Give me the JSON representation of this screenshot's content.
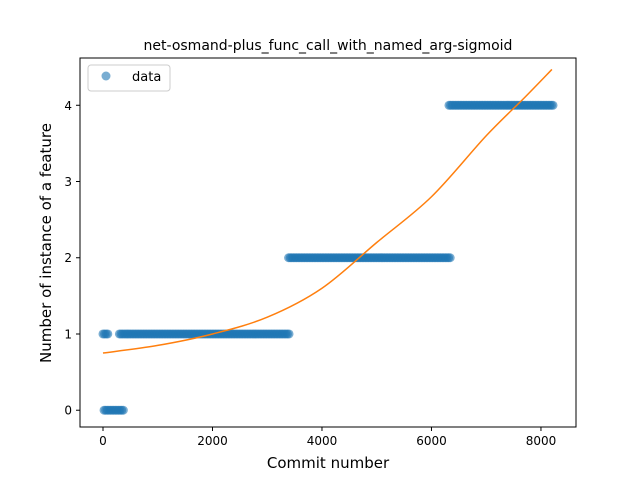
{
  "chart_data": {
    "type": "scatter",
    "title": "net-osmand-plus_func_call_with_named_arg-sigmoid",
    "xlabel": "Commit number",
    "ylabel": "Number of instance of a feature",
    "xlim": [
      -420,
      8640
    ],
    "ylim": [
      -0.22,
      4.62
    ],
    "xticks": [
      0,
      2000,
      4000,
      6000,
      8000
    ],
    "yticks": [
      0,
      1,
      2,
      3,
      4
    ],
    "grid": false,
    "legend": {
      "placement": "top-left",
      "entries": [
        {
          "label": "data",
          "marker": "circle"
        }
      ]
    },
    "colors": {
      "data": "#1f77b4",
      "fit": "#ff7f0e"
    },
    "series": [
      {
        "name": "data",
        "kind": "scatter",
        "segments": [
          {
            "x_start": 0,
            "x_end": 100,
            "y": 1
          },
          {
            "x_start": 20,
            "x_end": 380,
            "y": 0
          },
          {
            "x_start": 300,
            "x_end": 3420,
            "y": 1
          },
          {
            "x_start": 3390,
            "x_end": 6350,
            "y": 2
          },
          {
            "x_start": 6320,
            "x_end": 8240,
            "y": 4
          }
        ]
      },
      {
        "kind": "line",
        "points": [
          {
            "x": 0,
            "y": 0.75
          },
          {
            "x": 1000,
            "y": 0.85
          },
          {
            "x": 2000,
            "y": 1.0
          },
          {
            "x": 3000,
            "y": 1.22
          },
          {
            "x": 4000,
            "y": 1.6
          },
          {
            "x": 5000,
            "y": 2.2
          },
          {
            "x": 6000,
            "y": 2.8
          },
          {
            "x": 7000,
            "y": 3.6
          },
          {
            "x": 7700,
            "y": 4.1
          },
          {
            "x": 8200,
            "y": 4.47
          }
        ]
      }
    ]
  }
}
